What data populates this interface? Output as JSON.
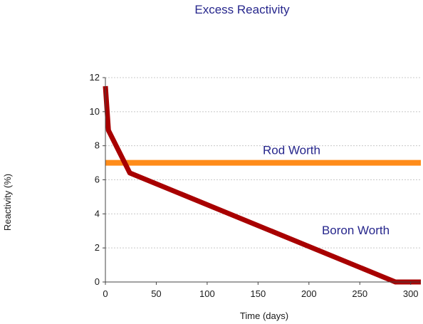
{
  "chart_data": {
    "type": "line",
    "title": "Excess Reactivity",
    "xlabel": "Time (days)",
    "ylabel": "Reactivity (%)",
    "xlim": [
      0,
      310
    ],
    "ylim": [
      0,
      12
    ],
    "xticks": [
      0,
      50,
      100,
      150,
      200,
      250,
      300
    ],
    "yticks": [
      0,
      2,
      4,
      6,
      8,
      10,
      12
    ],
    "grid": "horizontal dotted",
    "series": [
      {
        "name": "",
        "color": "#a80000",
        "points": [
          [
            0,
            11.5
          ],
          [
            3,
            8.9
          ],
          [
            24,
            6.4
          ],
          [
            285,
            0
          ],
          [
            310,
            0
          ]
        ]
      }
    ],
    "reference_line": {
      "y": 7,
      "color": "#ff8c1a"
    },
    "annotations": [
      {
        "text": "Rod Worth",
        "x": 183,
        "y": 7.5
      },
      {
        "text": "Boron Worth",
        "x": 246,
        "y": 2.8
      }
    ],
    "colors": {
      "title": "#26268c",
      "axis": "#444444",
      "grid": "#c8c8c8"
    }
  }
}
